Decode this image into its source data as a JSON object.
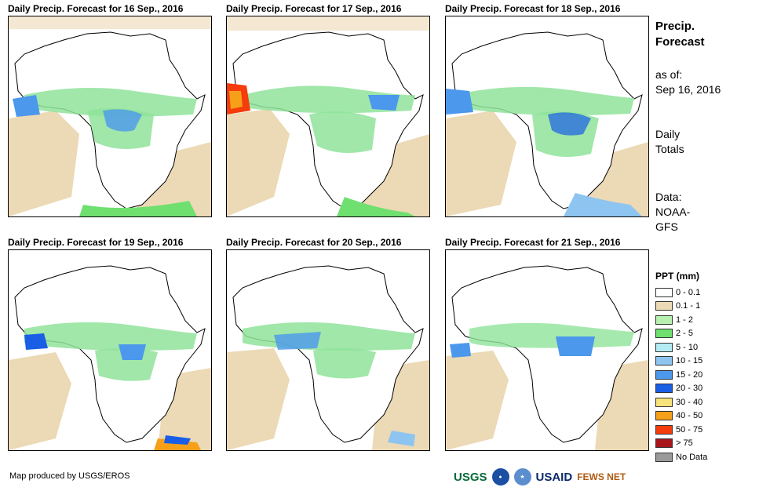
{
  "panels": [
    {
      "title": "Daily Precip. Forecast for 16 Sep., 2016"
    },
    {
      "title": "Daily Precip. Forecast for 17 Sep., 2016"
    },
    {
      "title": "Daily Precip. Forecast for 18 Sep., 2016"
    },
    {
      "title": "Daily Precip. Forecast for 19 Sep., 2016"
    },
    {
      "title": "Daily Precip. Forecast for 20 Sep., 2016"
    },
    {
      "title": "Daily Precip. Forecast for 21 Sep., 2016"
    }
  ],
  "side": {
    "title_line1": "Precip.",
    "title_line2": "Forecast",
    "asof_line1": "as of:",
    "asof_line2": "Sep 16, 2016",
    "daily_line1": "Daily",
    "daily_line2": "Totals",
    "data_line1": "Data:",
    "data_line2": "NOAA-",
    "data_line3": "GFS"
  },
  "legend": {
    "title": "PPT (mm)",
    "items": [
      {
        "label": "0 - 0.1",
        "color": "#ffffff"
      },
      {
        "label": "0.1 - 1",
        "color": "#ecd9b5"
      },
      {
        "label": "1 - 2",
        "color": "#b7f0b0"
      },
      {
        "label": "2 - 5",
        "color": "#6fe06f"
      },
      {
        "label": "5 - 10",
        "color": "#b4ecf4"
      },
      {
        "label": "10 - 15",
        "color": "#8ec4f0"
      },
      {
        "label": "15 - 20",
        "color": "#4c98ec"
      },
      {
        "label": "20 - 30",
        "color": "#1a5ee6"
      },
      {
        "label": "30 - 40",
        "color": "#f7e37c"
      },
      {
        "label": "40 - 50",
        "color": "#f6a01a"
      },
      {
        "label": "50 - 75",
        "color": "#f53c0c"
      },
      {
        "label": "> 75",
        "color": "#a8161c"
      },
      {
        "label": "No Data",
        "color": "#9a9a9a"
      }
    ]
  },
  "footer": {
    "credit": "Map produced by USGS/EROS",
    "logo_usgs": "USGS",
    "logo_usaid": "USAID",
    "logo_fewsnet": "FEWS NET"
  }
}
